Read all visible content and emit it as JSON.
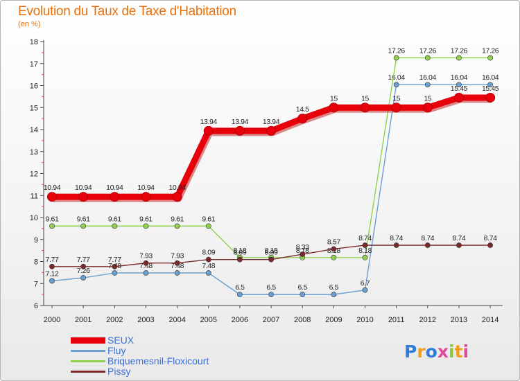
{
  "page": {
    "title": "Evolution du Taux de Taxe d'Habitation",
    "unit_label": "(en %)",
    "logo": "Proxiti"
  },
  "chart_data": {
    "type": "line",
    "title": "Evolution du Taux de Taxe d'Habitation",
    "subtitle": "(en %)",
    "xlabel": "",
    "ylabel": "",
    "x": [
      2000,
      2001,
      2002,
      2003,
      2004,
      2005,
      2006,
      2007,
      2008,
      2009,
      2010,
      2011,
      2012,
      2013,
      2014
    ],
    "ylim": [
      6,
      18
    ],
    "yticks": [
      6,
      7,
      8,
      9,
      10,
      11,
      12,
      13,
      14,
      15,
      16,
      17,
      18
    ],
    "grid": false,
    "legend_position": "bottom-left",
    "series": [
      {
        "name": "SEUX",
        "color": "#e8000b",
        "values": [
          10.94,
          10.94,
          10.94,
          10.94,
          10.94,
          13.94,
          13.94,
          13.94,
          14.5,
          15,
          15,
          15,
          15,
          15.45,
          15.45
        ],
        "labels": [
          "10.94",
          "10.94",
          "10.94",
          "10.94",
          "10.94",
          "13.94",
          "13.94",
          "13.94",
          "14.5",
          "15",
          "15",
          "15",
          "15",
          "15.45",
          "15.45"
        ]
      },
      {
        "name": "Fluy",
        "color": "#6a9fd1",
        "values": [
          7.12,
          7.26,
          7.48,
          7.48,
          7.48,
          7.48,
          6.5,
          6.5,
          6.5,
          6.5,
          6.7,
          16.04,
          16.04,
          16.04,
          16.04
        ],
        "labels": [
          "7.12",
          "7.26",
          "7.48",
          "7.48",
          "7.48",
          "7.48",
          "6.5",
          "6.5",
          "6.5",
          "6.5",
          "6.7",
          "16.04",
          "16.04",
          "16.04",
          "16.04"
        ]
      },
      {
        "name": "Briquemesnil-Floxicourt",
        "color": "#8fd14f",
        "values": [
          9.61,
          9.61,
          9.61,
          9.61,
          9.61,
          9.61,
          8.18,
          8.18,
          8.18,
          8.18,
          8.18,
          17.26,
          17.26,
          17.26,
          17.26
        ],
        "labels": [
          "9.61",
          "9.61",
          "9.61",
          "9.61",
          "9.61",
          "9.61",
          "8.18",
          "8.18",
          "8.18",
          "8.18",
          "8.18",
          "17.26",
          "17.26",
          "17.26",
          "17.26"
        ]
      },
      {
        "name": "Pissy",
        "color": "#7a2a2a",
        "values": [
          7.77,
          7.77,
          7.77,
          7.93,
          7.93,
          8.09,
          8.09,
          8.09,
          8.33,
          8.57,
          8.74,
          8.74,
          8.74,
          8.74,
          8.74
        ],
        "labels": [
          "7.77",
          "7.77",
          "7.77",
          "7.93",
          "7.93",
          "8.09",
          "8.09",
          "8.09",
          "8.33",
          "8.57",
          "8.74",
          "8.74",
          "8.74",
          "8.74",
          "8.74"
        ]
      }
    ]
  }
}
